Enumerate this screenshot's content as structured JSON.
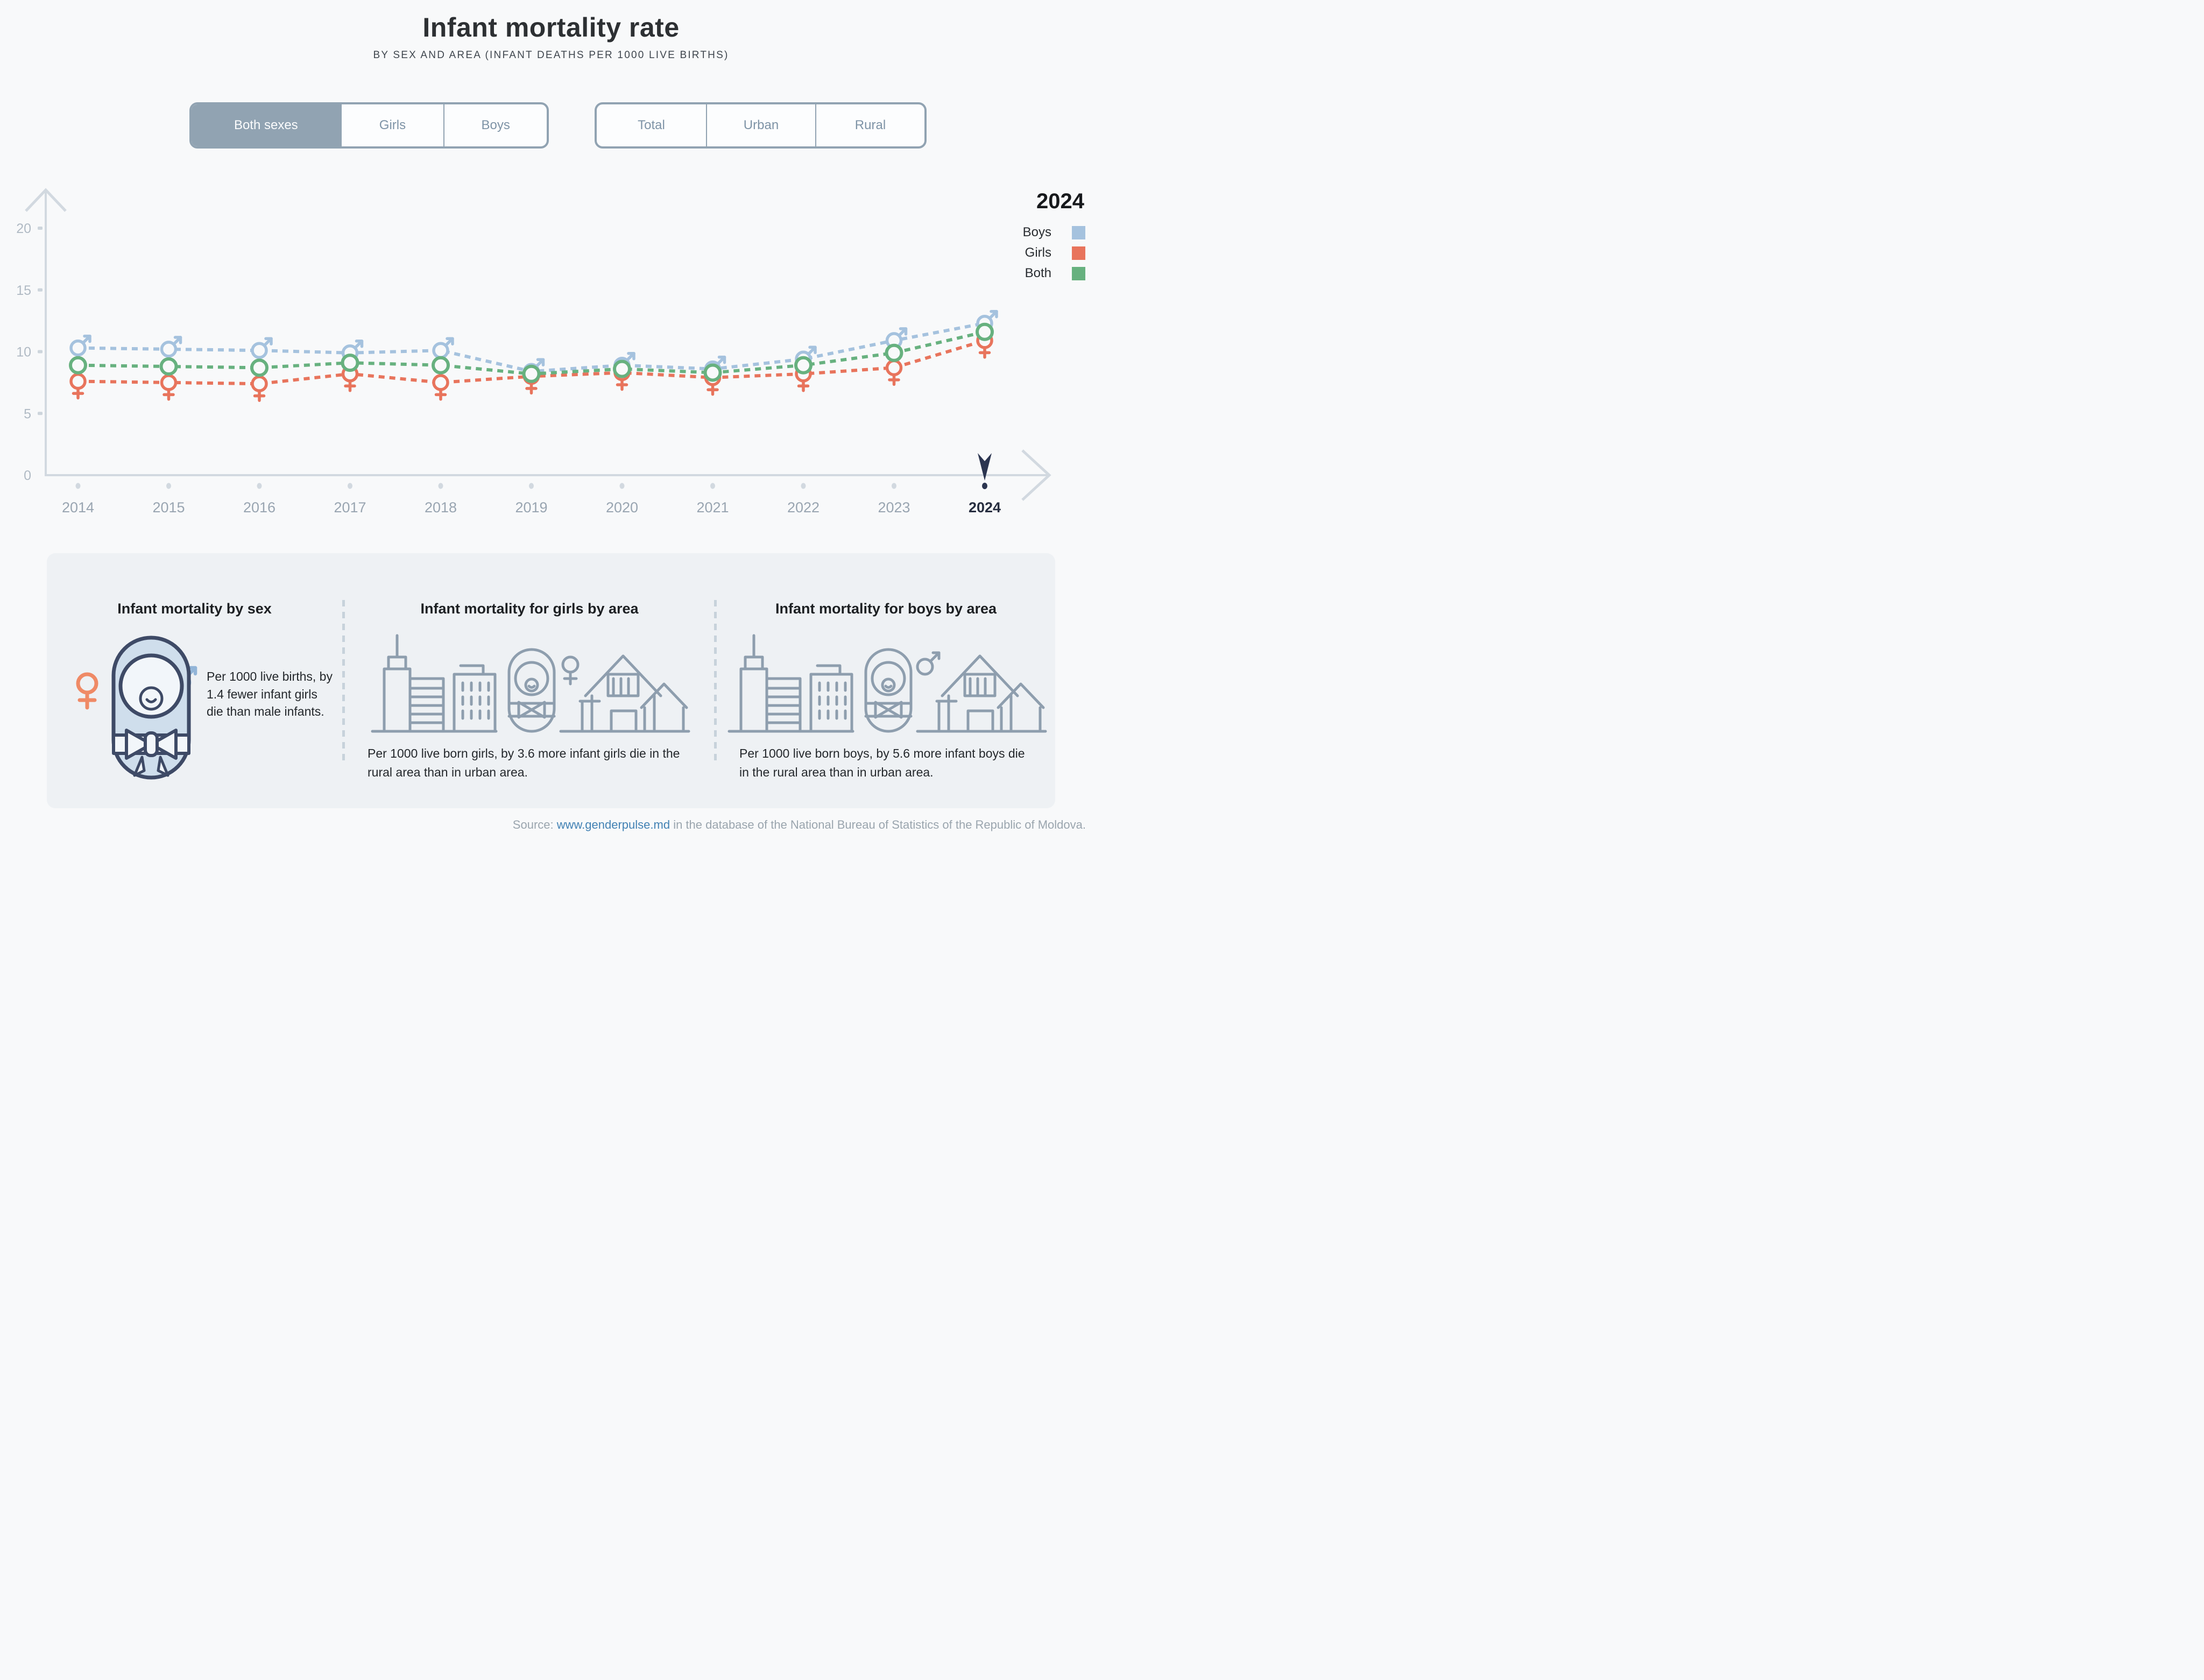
{
  "header": {
    "title": "Infant mortality rate",
    "subtitle": "BY SEX AND AREA (INFANT DEATHS PER 1000 LIVE BIRTHS)"
  },
  "controls": {
    "sex_options": [
      "Both sexes",
      "Girls",
      "Boys"
    ],
    "sex_selected": "Both sexes",
    "area_options": [
      "Total",
      "Urban",
      "Rural"
    ],
    "area_selected": ""
  },
  "legend": {
    "year": "2024",
    "items": [
      {
        "label": "Boys",
        "color": "#a5c2de"
      },
      {
        "label": "Girls",
        "color": "#e8745c"
      },
      {
        "label": "Both",
        "color": "#67b17f"
      }
    ]
  },
  "chart_data": {
    "type": "line",
    "x": [
      2014,
      2015,
      2016,
      2017,
      2018,
      2019,
      2020,
      2021,
      2022,
      2023,
      2024
    ],
    "series": [
      {
        "name": "Boys",
        "color": "#a5c2de",
        "marker": "male",
        "values": [
          10.3,
          10.2,
          10.1,
          9.9,
          10.1,
          8.4,
          8.9,
          8.6,
          9.4,
          10.9,
          12.3
        ]
      },
      {
        "name": "Girls",
        "color": "#e8745c",
        "marker": "female",
        "values": [
          7.6,
          7.5,
          7.4,
          8.2,
          7.5,
          8.0,
          8.3,
          7.9,
          8.2,
          8.7,
          10.9
        ]
      },
      {
        "name": "Both",
        "color": "#67b17f",
        "marker": "circle",
        "values": [
          8.9,
          8.8,
          8.7,
          9.1,
          8.9,
          8.2,
          8.6,
          8.3,
          8.9,
          9.9,
          11.6
        ]
      }
    ],
    "title": "Infant mortality rate",
    "xlabel": "",
    "ylabel": "",
    "ylim": [
      0,
      20
    ],
    "yticks": [
      0,
      5,
      10,
      15,
      20
    ],
    "highlight_year": 2024,
    "grid": false,
    "legend_position": "top-right"
  },
  "cards": [
    {
      "title": "Infant mortality by sex",
      "text": "Per 1000 live births, by 1.4 fewer infant girls die than male infants."
    },
    {
      "title": "Infant mortality for girls by area",
      "text": "Per 1000 live born girls, by 3.6 more infant girls die in the rural area than in urban area."
    },
    {
      "title": "Infant mortality for boys by area",
      "text": "Per 1000 live born boys, by 5.6 more infant boys die in the rural area than in urban area."
    }
  ],
  "source": {
    "prefix": "Source: ",
    "link": "www.genderpulse.md",
    "suffix": " in the database of the National Bureau of Statistics of the Republic of Moldova."
  }
}
